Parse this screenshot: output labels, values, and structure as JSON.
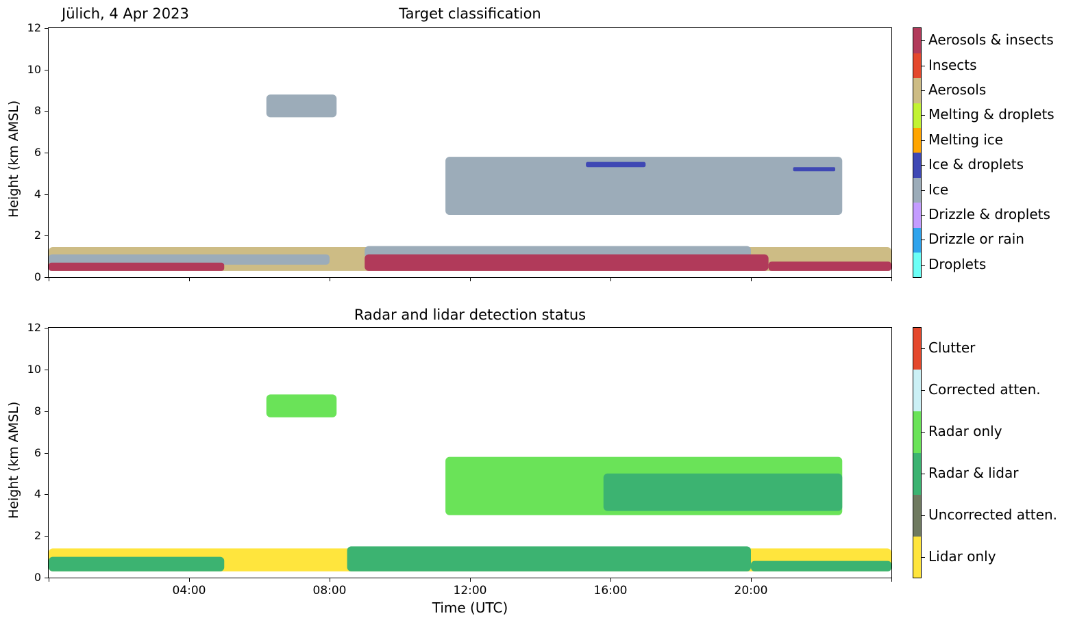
{
  "site_label": "Jülich, 4 Apr 2023",
  "chart_data": [
    {
      "type": "heatmap",
      "title": "Target classification",
      "xlabel": "",
      "ylabel": "Height (km AMSL)",
      "ylim": [
        0,
        12
      ],
      "xlim": [
        "00:00",
        "24:00"
      ],
      "yticks": [
        "0",
        "2",
        "4",
        "6",
        "8",
        "10",
        "12"
      ],
      "xticks": [
        "04:00",
        "08:00",
        "12:00",
        "16:00",
        "20:00"
      ],
      "xtick_labels_visible": false,
      "legend_placement": "right colorbar",
      "categories": [
        {
          "label": "Droplets",
          "color": "#6cfff6"
        },
        {
          "label": "Drizzle or rain",
          "color": "#2fa3ec"
        },
        {
          "label": "Drizzle & droplets",
          "color": "#c49cff"
        },
        {
          "label": "Ice",
          "color": "#9cacb9"
        },
        {
          "label": "Ice & droplets",
          "color": "#3f48b4"
        },
        {
          "label": "Melting ice",
          "color": "#ffa500"
        },
        {
          "label": "Melting & droplets",
          "color": "#c2f332"
        },
        {
          "label": "Aerosols",
          "color": "#cdbc85"
        },
        {
          "label": "Insects",
          "color": "#e4482c"
        },
        {
          "label": "Aerosols & insects",
          "color": "#b13a5a"
        }
      ],
      "regions": [
        {
          "class": "Aerosols",
          "t0": 0.0,
          "t1": 24.0,
          "h0": 0.3,
          "h1": 1.45
        },
        {
          "class": "Ice",
          "t0": 0.0,
          "t1": 8.0,
          "h0": 0.6,
          "h1": 1.1
        },
        {
          "class": "Aerosols & insects",
          "t0": 0.0,
          "t1": 5.0,
          "h0": 0.3,
          "h1": 0.7
        },
        {
          "class": "Ice",
          "t0": 9.0,
          "t1": 20.0,
          "h0": 0.9,
          "h1": 1.5
        },
        {
          "class": "Aerosols & insects",
          "t0": 9.0,
          "t1": 20.5,
          "h0": 0.3,
          "h1": 1.1
        },
        {
          "class": "Aerosols & insects",
          "t0": 20.5,
          "t1": 24.0,
          "h0": 0.3,
          "h1": 0.75
        },
        {
          "class": "Ice",
          "t0": 6.2,
          "t1": 8.2,
          "h0": 7.7,
          "h1": 8.8
        },
        {
          "class": "Ice",
          "t0": 11.3,
          "t1": 22.6,
          "h0": 3.0,
          "h1": 5.8
        },
        {
          "class": "Ice & droplets",
          "t0": 15.3,
          "t1": 17.0,
          "h0": 5.3,
          "h1": 5.55
        },
        {
          "class": "Ice & droplets",
          "t0": 21.2,
          "t1": 22.4,
          "h0": 5.1,
          "h1": 5.3
        }
      ]
    },
    {
      "type": "heatmap",
      "title": "Radar and lidar detection status",
      "xlabel": "Time (UTC)",
      "ylabel": "Height (km AMSL)",
      "ylim": [
        0,
        12
      ],
      "xlim": [
        "00:00",
        "24:00"
      ],
      "yticks": [
        "0",
        "2",
        "4",
        "6",
        "8",
        "10",
        "12"
      ],
      "xticks": [
        "04:00",
        "08:00",
        "12:00",
        "16:00",
        "20:00"
      ],
      "xtick_labels_visible": true,
      "legend_placement": "right colorbar",
      "categories": [
        {
          "label": "Lidar only",
          "color": "#ffe53d"
        },
        {
          "label": "Uncorrected atten.",
          "color": "#6f7a60"
        },
        {
          "label": "Radar & lidar",
          "color": "#3cb371"
        },
        {
          "label": "Radar only",
          "color": "#6ae358"
        },
        {
          "label": "Corrected atten.",
          "color": "#cbf0f5"
        },
        {
          "label": "Clutter",
          "color": "#e4482c"
        }
      ],
      "regions": [
        {
          "class": "Lidar only",
          "t0": 0.0,
          "t1": 24.0,
          "h0": 0.3,
          "h1": 1.4
        },
        {
          "class": "Radar & lidar",
          "t0": 0.0,
          "t1": 5.0,
          "h0": 0.3,
          "h1": 1.0
        },
        {
          "class": "Radar & lidar",
          "t0": 8.5,
          "t1": 20.0,
          "h0": 0.3,
          "h1": 1.5
        },
        {
          "class": "Radar & lidar",
          "t0": 20.0,
          "t1": 24.0,
          "h0": 0.3,
          "h1": 0.8
        },
        {
          "class": "Radar only",
          "t0": 6.2,
          "t1": 8.2,
          "h0": 7.7,
          "h1": 8.8
        },
        {
          "class": "Radar only",
          "t0": 11.3,
          "t1": 22.6,
          "h0": 3.0,
          "h1": 5.8
        },
        {
          "class": "Radar & lidar",
          "t0": 15.8,
          "t1": 22.6,
          "h0": 3.2,
          "h1": 5.0
        }
      ]
    }
  ]
}
